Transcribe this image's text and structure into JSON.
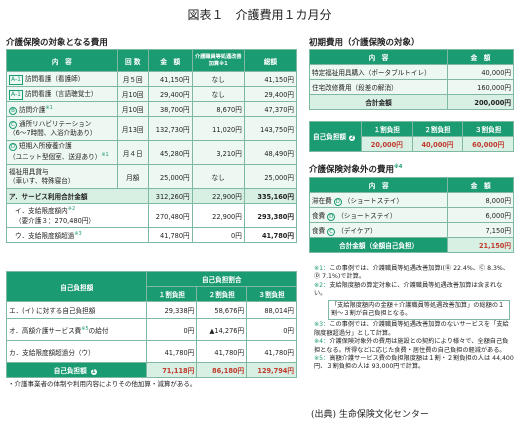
{
  "title": "図表１　介護費用１カ月分",
  "care": {
    "heading": "介護保険の対象となる費用",
    "headers": [
      "内　容",
      "回 数",
      "金　額",
      "介護職員等処遇改善加算※1",
      "総額"
    ],
    "rows": [
      {
        "badge": "A-1",
        "label": "訪問看護（看護師）",
        "count": "月５回",
        "amount": "41,150円",
        "extra": "なし",
        "total": "41,150円"
      },
      {
        "badge": "A-1",
        "label": "訪問看護（言語聴覚士）",
        "count": "月10回",
        "amount": "29,400円",
        "extra": "なし",
        "total": "29,400円"
      },
      {
        "badge": "B",
        "label": "訪問介護",
        "note": "※1",
        "count": "月10回",
        "amount": "38,700円",
        "extra": "8,670円",
        "total": "47,370円"
      },
      {
        "badge": "C",
        "label": "通所リハビリテーション",
        "label2": "（6～7時間、入浴介助あり）",
        "count": "月13回",
        "amount": "132,730円",
        "extra": "11,020円",
        "total": "143,750円"
      },
      {
        "badge": "D",
        "label": "短期入所療養介護",
        "label2": "（ユニット型個室、送迎あり）",
        "note": "※1",
        "count": "月４日",
        "amount": "45,280円",
        "extra": "3,210円",
        "total": "48,490円"
      },
      {
        "label": "福祉用具貸与",
        "label2": "（車いす、特殊寝台）",
        "count": "月額",
        "amount": "25,000円",
        "extra": "なし",
        "total": "25,000円"
      }
    ],
    "subtotal": {
      "label": "ア．サービス利用合計金額",
      "amount": "312,260円",
      "extra": "22,900円",
      "total": "335,160円"
    },
    "row_i": {
      "label": "イ．支給限度額内",
      "note": "※2",
      "label2": "（要介護３：270,480円）",
      "amount": "270,480円",
      "extra": "22,900円",
      "total": "293,380円"
    },
    "row_u": {
      "label": "ウ．支給限度額超過",
      "note": "※3",
      "amount": "41,780円",
      "extra": "0円",
      "total": "41,780円"
    }
  },
  "selfpay": {
    "heading": "自己負担額",
    "group": "自己負担割合",
    "cols": [
      "１割負担",
      "２割負担",
      "３割負担"
    ],
    "rows": [
      {
        "label": "エ．(イ) に対する自己負担額",
        "v": [
          "29,338円",
          "58,676円",
          "88,014円"
        ]
      },
      {
        "label": "オ．高額介護サービス費",
        "note": "※5",
        "label3": "の給付",
        "v": [
          "0円",
          "▲14,276円",
          "0円"
        ]
      },
      {
        "label": "カ．支給限度額超過分（ウ）",
        "v": [
          "41,780円",
          "41,780円",
          "41,780円"
        ]
      }
    ],
    "total": {
      "label": "自己負担額",
      "num": "1",
      "v": [
        "71,118円",
        "86,180円",
        "129,794円"
      ]
    }
  },
  "left_note": "・介護事業者の体制や利用内容によりその他加算・減算がある。",
  "initial": {
    "heading": "初期費用（介護保険の対象）",
    "headers": [
      "内　容",
      "金　額"
    ],
    "rows": [
      {
        "label": "特定福祉用具購入（ポータブルトイレ）",
        "amount": "40,000円"
      },
      {
        "label": "住宅改修費用（段差の解消）",
        "amount": "160,000円"
      }
    ],
    "total_label": "合計金額",
    "total": "200,000円",
    "self_label": "自己負担額",
    "self_num": "2",
    "cols": [
      "１割負担",
      "２割負担",
      "３割負担"
    ],
    "vals": [
      "20,000円",
      "40,000円",
      "60,000円"
    ]
  },
  "outside": {
    "heading": "介護保険対象外の費用",
    "note": "※4",
    "headers": [
      "内　容",
      "金　額"
    ],
    "rows": [
      {
        "label": "滞在費",
        "sub": "（ショートステイ）",
        "badge": "D",
        "amount": "8,000円"
      },
      {
        "label": "食費",
        "sub": "（ショートステイ）",
        "badge": "D",
        "amount": "6,000円"
      },
      {
        "label": "食費",
        "sub": "（デイケア）",
        "badge": "C",
        "amount": "7,150円"
      }
    ],
    "total_label": "合計金額（全額自己負担）",
    "total": "21,150円"
  },
  "notes": [
    {
      "mark": "※1：",
      "text": "この事例では、介護職員等処遇改善加算Ⅰ(Ⓑ 22.4%、Ⓒ 8.3%、Ⓓ 7.1%)で計算。"
    },
    {
      "mark": "※2：",
      "text": "支給限度額の算定対象に、介護職員等処遇改善加算は含まれない。"
    },
    {
      "mark": "",
      "text": "「支給限度額内の金額＋介護職員等処遇改善加算」の総額の１割～３割が自己負担となる。"
    },
    {
      "mark": "※3：",
      "text": "この事例では、介護職員等処遇改善加算のないサービスを「支給限度額超過分」として計算。"
    },
    {
      "mark": "※4：",
      "text": "介護保険対象外の費用は施設との契約により様々で、全額自己負担となる。所得などに応じた食費・居住費の自己負担の軽減がある。"
    },
    {
      "mark": "※5：",
      "text": "高額介護サービス費の負担限度額は１割・２割負担の人は 44,400円、３割負担の人は 93,000円で計算。"
    }
  ],
  "source": "(出典) 生命保険文化センター"
}
